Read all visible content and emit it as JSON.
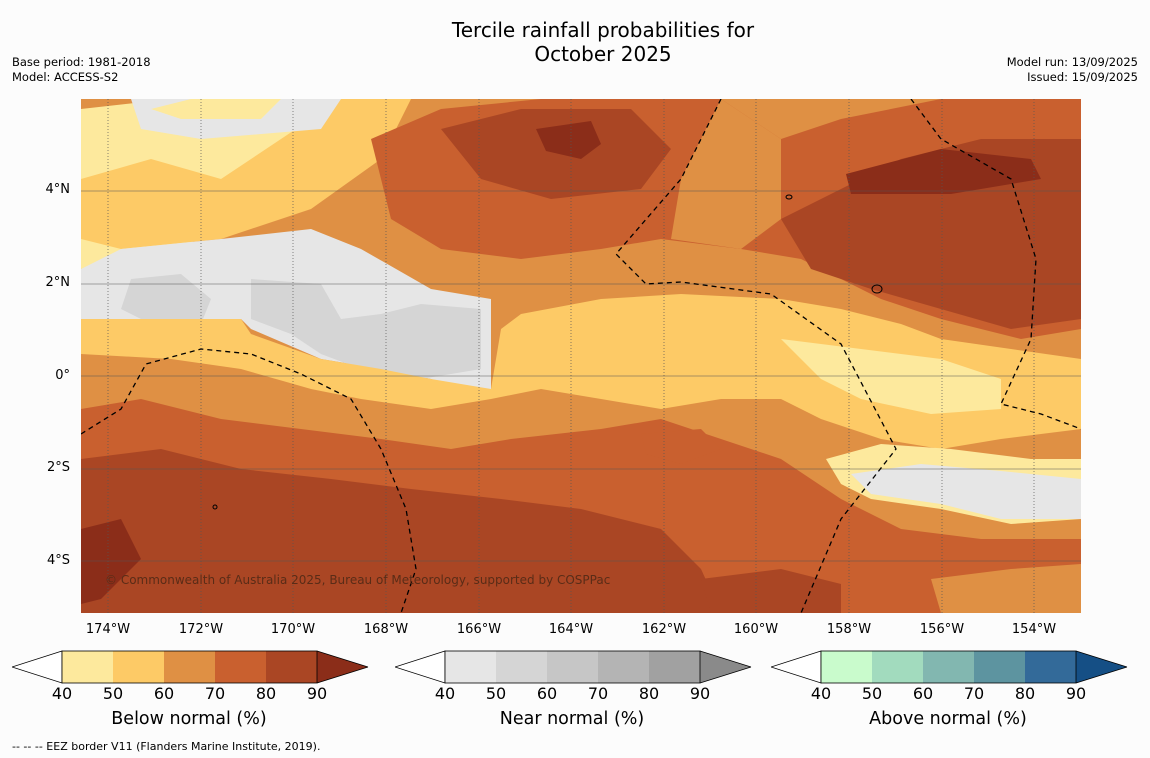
{
  "title_line1": "Tercile rainfall probabilities for",
  "title_line2": "October 2025",
  "meta_left": {
    "base_period": "Base period: 1981-2018",
    "model": "Model: ACCESS-S2"
  },
  "meta_right": {
    "model_run": "Model run: 13/09/2025",
    "issued": "Issued: 15/09/2025"
  },
  "map": {
    "lat_labels": [
      "4°N",
      "2°N",
      "0°",
      "2°S",
      "4°S"
    ],
    "lon_labels": [
      "174°W",
      "172°W",
      "170°W",
      "168°W",
      "166°W",
      "164°W",
      "162°W",
      "160°W",
      "158°W",
      "156°W",
      "154°W"
    ],
    "copyright": "© Commonwealth of Australia 2025, Bureau of Meteorology, supported by COSPPac"
  },
  "colorbars": [
    {
      "title": "Below normal (%)",
      "ticks": [
        "40",
        "50",
        "60",
        "70",
        "80",
        "90"
      ],
      "colors": [
        "#fde99d",
        "#fdca66",
        "#df9044",
        "#c9602f",
        "#aa4624",
        "#8b2d19"
      ]
    },
    {
      "title": "Near normal (%)",
      "ticks": [
        "40",
        "50",
        "60",
        "70",
        "80",
        "90"
      ],
      "colors": [
        "#e6e6e6",
        "#d5d5d5",
        "#c6c6c6",
        "#b4b4b4",
        "#a1a1a1",
        "#8a8a8a"
      ]
    },
    {
      "title": "Above normal (%)",
      "ticks": [
        "40",
        "50",
        "60",
        "70",
        "80",
        "90"
      ],
      "colors": [
        "#c9fbcc",
        "#a2dbbe",
        "#82b7b0",
        "#5d94a0",
        "#336a99",
        "#154f85"
      ]
    }
  ],
  "footnote": "--  --  -- EEZ border V11 (Flanders Marine Institute, 2019)."
}
